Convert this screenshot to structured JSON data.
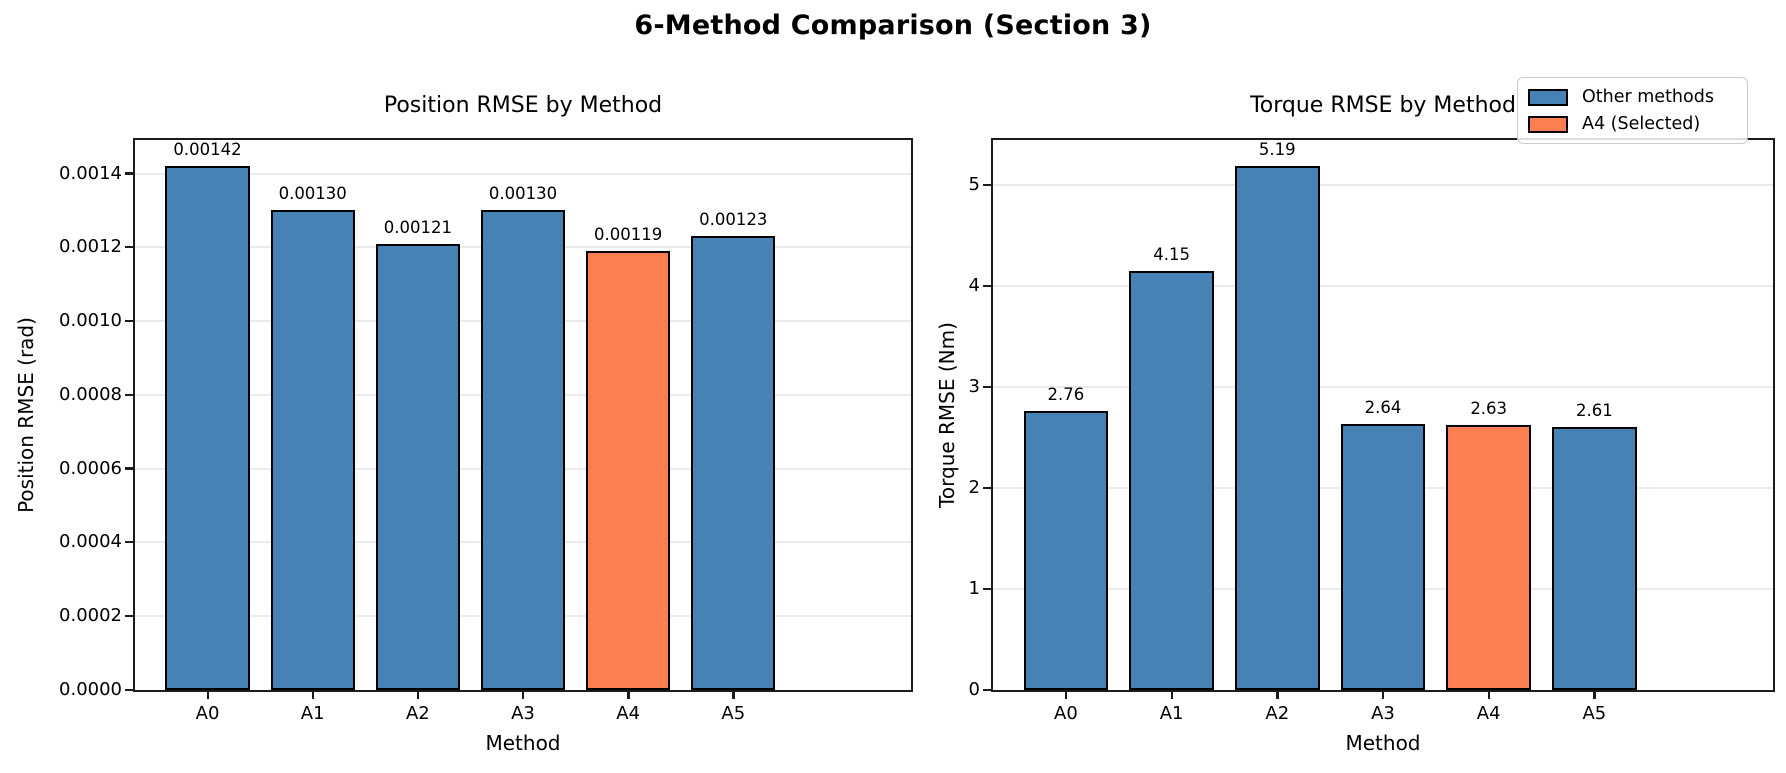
{
  "figure": {
    "suptitle": "6-Method Comparison (Section 3)",
    "colors": {
      "other": "#4682B4",
      "selected": "#FC7F51",
      "bar_edge": "#000000",
      "grid": "#ebebeb",
      "spine": "#1c1c1c"
    },
    "legend": {
      "position": "top-right",
      "items": [
        {
          "label": "Other methods",
          "color_key": "other"
        },
        {
          "label": "A4 (Selected)",
          "color_key": "selected"
        }
      ]
    }
  },
  "chart_data": [
    {
      "type": "bar",
      "title": "Position RMSE by Method",
      "xlabel": "Method",
      "ylabel": "Position RMSE (rad)",
      "categories": [
        "A0",
        "A1",
        "A2",
        "A3",
        "A4",
        "A5"
      ],
      "values": [
        0.00142,
        0.0013,
        0.00121,
        0.0013,
        0.00119,
        0.00123
      ],
      "value_labels": [
        "0.00142",
        "0.00130",
        "0.00121",
        "0.00130",
        "0.00119",
        "0.00123"
      ],
      "highlight_index": 4,
      "bar_width_fraction": 0.8,
      "x_margin_fraction": 0.69,
      "ylim": [
        0,
        0.001491
      ],
      "yticks": [
        0.0,
        0.0002,
        0.0004,
        0.0006,
        0.0008,
        0.001,
        0.0012,
        0.0014
      ],
      "ytick_labels": [
        "0.0000",
        "0.0002",
        "0.0004",
        "0.0006",
        "0.0008",
        "0.0010",
        "0.0012",
        "0.0014"
      ],
      "grid": true,
      "legend": false
    },
    {
      "type": "bar",
      "title": "Torque RMSE by Method",
      "xlabel": "Method",
      "ylabel": "Torque RMSE (Nm)",
      "categories": [
        "A0",
        "A1",
        "A2",
        "A3",
        "A4",
        "A5"
      ],
      "values": [
        2.76,
        4.15,
        5.19,
        2.64,
        2.63,
        2.61
      ],
      "value_labels": [
        "2.76",
        "4.15",
        "5.19",
        "2.64",
        "2.63",
        "2.61"
      ],
      "highlight_index": 4,
      "bar_width_fraction": 0.8,
      "x_margin_fraction": 0.69,
      "ylim": [
        0,
        5.4495
      ],
      "yticks": [
        0,
        1,
        2,
        3,
        4,
        5
      ],
      "ytick_labels": [
        "0",
        "1",
        "2",
        "3",
        "4",
        "5"
      ],
      "grid": true,
      "legend": true
    }
  ]
}
